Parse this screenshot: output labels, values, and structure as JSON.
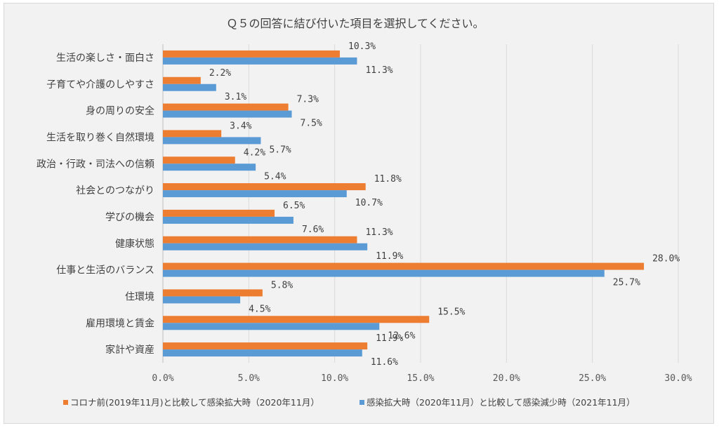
{
  "chart_data": {
    "type": "bar",
    "orientation": "horizontal",
    "title": "Ｑ５の回答に結び付いた項目を選択してください。",
    "categories": [
      "生活の楽しさ・面白さ",
      "子育てや介護のしやすさ",
      "身の周りの安全",
      "生活を取り巻く自然環境",
      "政治・行政・司法への信頼",
      "社会とのつながり",
      "学びの機会",
      "健康状態",
      "仕事と生活のバランス",
      "住環境",
      "雇用環境と賃金",
      "家計や資産"
    ],
    "series": [
      {
        "name": "コロナ前(2019年11月)と比較して感染拡大時（2020年11月）",
        "color": "#ed7d31",
        "values": [
          10.3,
          2.2,
          7.3,
          3.4,
          4.2,
          11.8,
          6.5,
          11.3,
          28.0,
          5.8,
          15.5,
          11.9
        ],
        "labels": [
          "10.3%",
          "2.2%",
          "7.3%",
          "3.4%",
          "4.2%",
          "11.8%",
          "6.5%",
          "11.3%",
          "28.0%",
          "5.8%",
          "15.5%",
          "11.9%"
        ]
      },
      {
        "name": "感染拡大時（2020年11月）と比較して感染減少時（2021年11月）",
        "color": "#5b9bd5",
        "values": [
          11.3,
          3.1,
          7.5,
          5.7,
          5.4,
          10.7,
          7.6,
          11.9,
          25.7,
          4.5,
          12.6,
          11.6
        ],
        "labels": [
          "11.3%",
          "3.1%",
          "7.5%",
          "5.7%",
          "5.4%",
          "10.7%",
          "7.6%",
          "11.9%",
          "25.7%",
          "4.5%",
          "12.6%",
          "11.6%"
        ]
      }
    ],
    "xlim": [
      0,
      30
    ],
    "ticks": [
      "0.0%",
      "5.0%",
      "10.0%",
      "15.0%",
      "20.0%",
      "25.0%",
      "30.0%"
    ],
    "tick_values": [
      0,
      5,
      10,
      15,
      20,
      25,
      30
    ],
    "grid": true,
    "legend_position": "bottom"
  }
}
